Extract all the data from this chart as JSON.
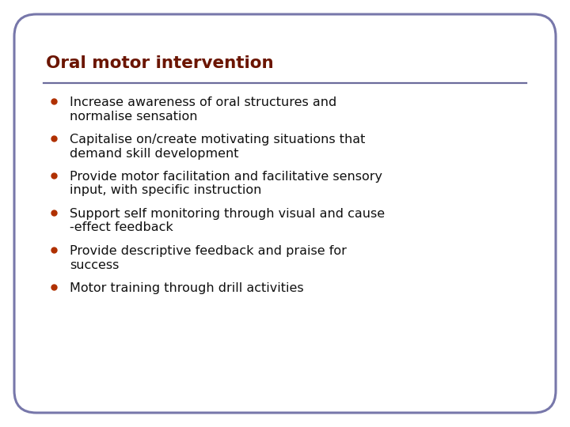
{
  "title": "Oral motor intervention",
  "title_color": "#6B1500",
  "title_fontsize": 15.5,
  "separator_color": "#6B6B9B",
  "background_color": "#FFFFFF",
  "border_color": "#7777AA",
  "border_linewidth": 2.2,
  "bullet_color": "#B03000",
  "text_color": "#111111",
  "text_fontsize": 11.5,
  "bullet_items": [
    "Increase awareness of oral structures and\nnormalise sensation",
    "Capitalise on/create motivating situations that\ndemand skill development",
    "Provide motor facilitation and facilitative sensory\ninput, with specific instruction",
    "Support self monitoring through visual and cause\n-effect feedback",
    "Provide descriptive feedback and praise for\nsuccess",
    "Motor training through drill activities"
  ]
}
